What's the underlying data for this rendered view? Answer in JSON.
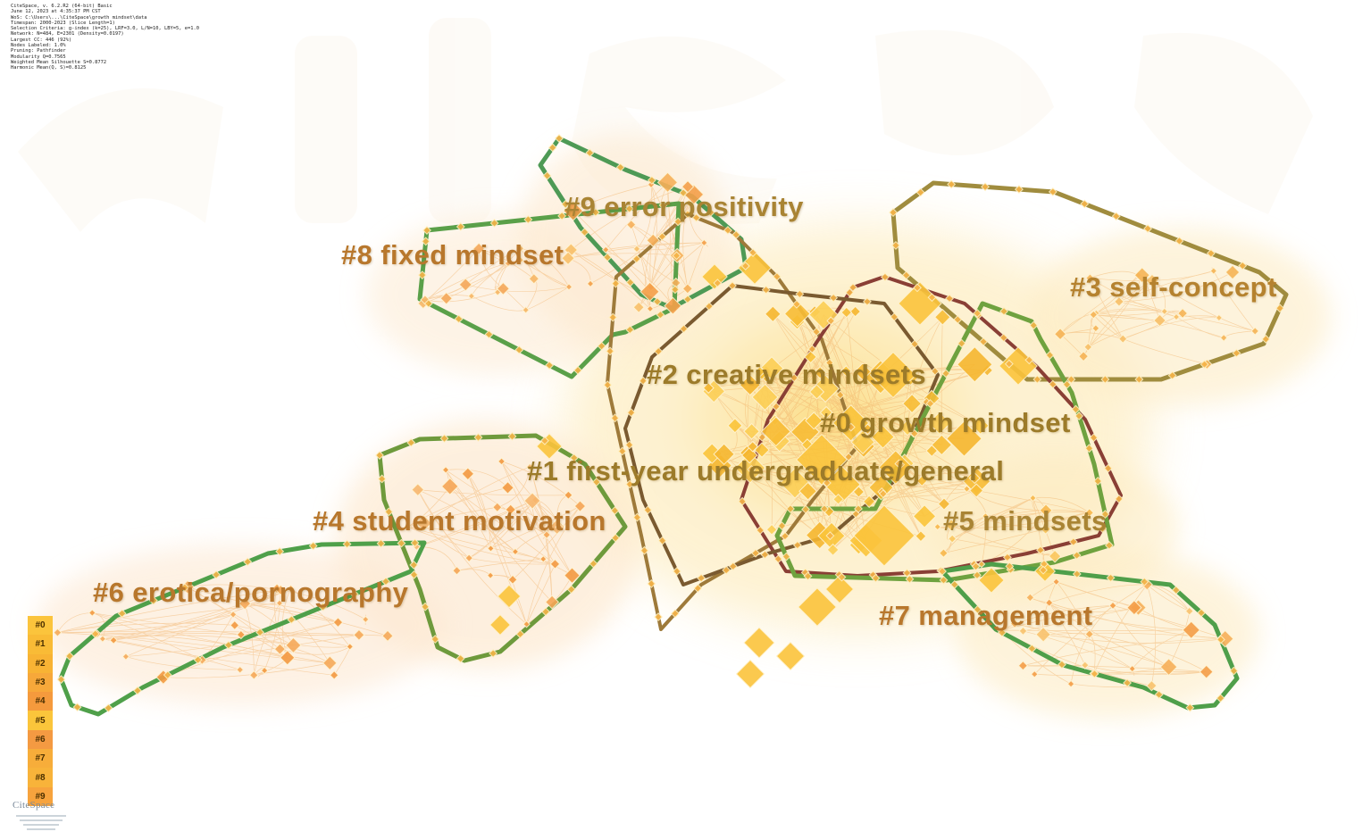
{
  "metadata_lines": [
    "CiteSpace, v. 6.2.R2 (64-bit) Basic",
    "June 12, 2023 at 4:35:37 PM CST",
    "WoS: C:\\Users\\...\\CiteSpace\\growth mindset\\data",
    "Timespan: 2000-2023 (Slice Length=1)",
    "Selection Criteria: g-index (k=25), LRF=3.0, L/N=10, LBY=5, e=1.0",
    "Network: N=484, E=2301 (Density=0.0197)",
    "Largest CC: 446 (92%)",
    "Nodes Labeled: 1.0%",
    "Pruning: Pathfinder",
    "Modularity Q=0.7565",
    "Weighted Mean Silhouette S=0.8772",
    "Harmonic Mean(Q, S)=0.8125"
  ],
  "clusters": [
    {
      "id": "#0",
      "label": "#0 growth mindset",
      "color": "#9c7b2a",
      "hull": "#8a5a2e"
    },
    {
      "id": "#1",
      "label": "#1 first-year undergraduate/general",
      "color": "#9c7b2a",
      "hull": "#7a5530"
    },
    {
      "id": "#2",
      "label": "#2 creative mindsets",
      "color": "#9c7b2a",
      "hull": "#a26a3a"
    },
    {
      "id": "#3",
      "label": "#3 self-concept",
      "color": "#b5822f",
      "hull": "#a08c3e"
    },
    {
      "id": "#4",
      "label": "#4 student motivation",
      "color": "#b8772c",
      "hull": "#6e9a3c"
    },
    {
      "id": "#5",
      "label": "#5 mindsets",
      "color": "#a98434",
      "hull": "#6fa23f"
    },
    {
      "id": "#6",
      "label": "#6 erotica/pornography",
      "color": "#b8772c",
      "hull": "#4fa04a"
    },
    {
      "id": "#7",
      "label": "#7 management",
      "color": "#b8772c",
      "hull": "#4f9f4a"
    },
    {
      "id": "#8",
      "label": "#8 fixed mindset",
      "color": "#b8772c",
      "hull": "#5aa049"
    },
    {
      "id": "#9",
      "label": "#9 error positivity",
      "color": "#a98434",
      "hull": "#4e9a55"
    }
  ],
  "legend": [
    "#0",
    "#1",
    "#2",
    "#3",
    "#4",
    "#5",
    "#6",
    "#7",
    "#8",
    "#9"
  ],
  "legend_colors": [
    "#fbc43c",
    "#f9bb36",
    "#f8b334",
    "#f7a83a",
    "#f59a3d",
    "#fbc53b",
    "#f49a42",
    "#f7ad3a",
    "#f8b33a",
    "#f7a33d"
  ],
  "logo_text": "CiteSpace"
}
